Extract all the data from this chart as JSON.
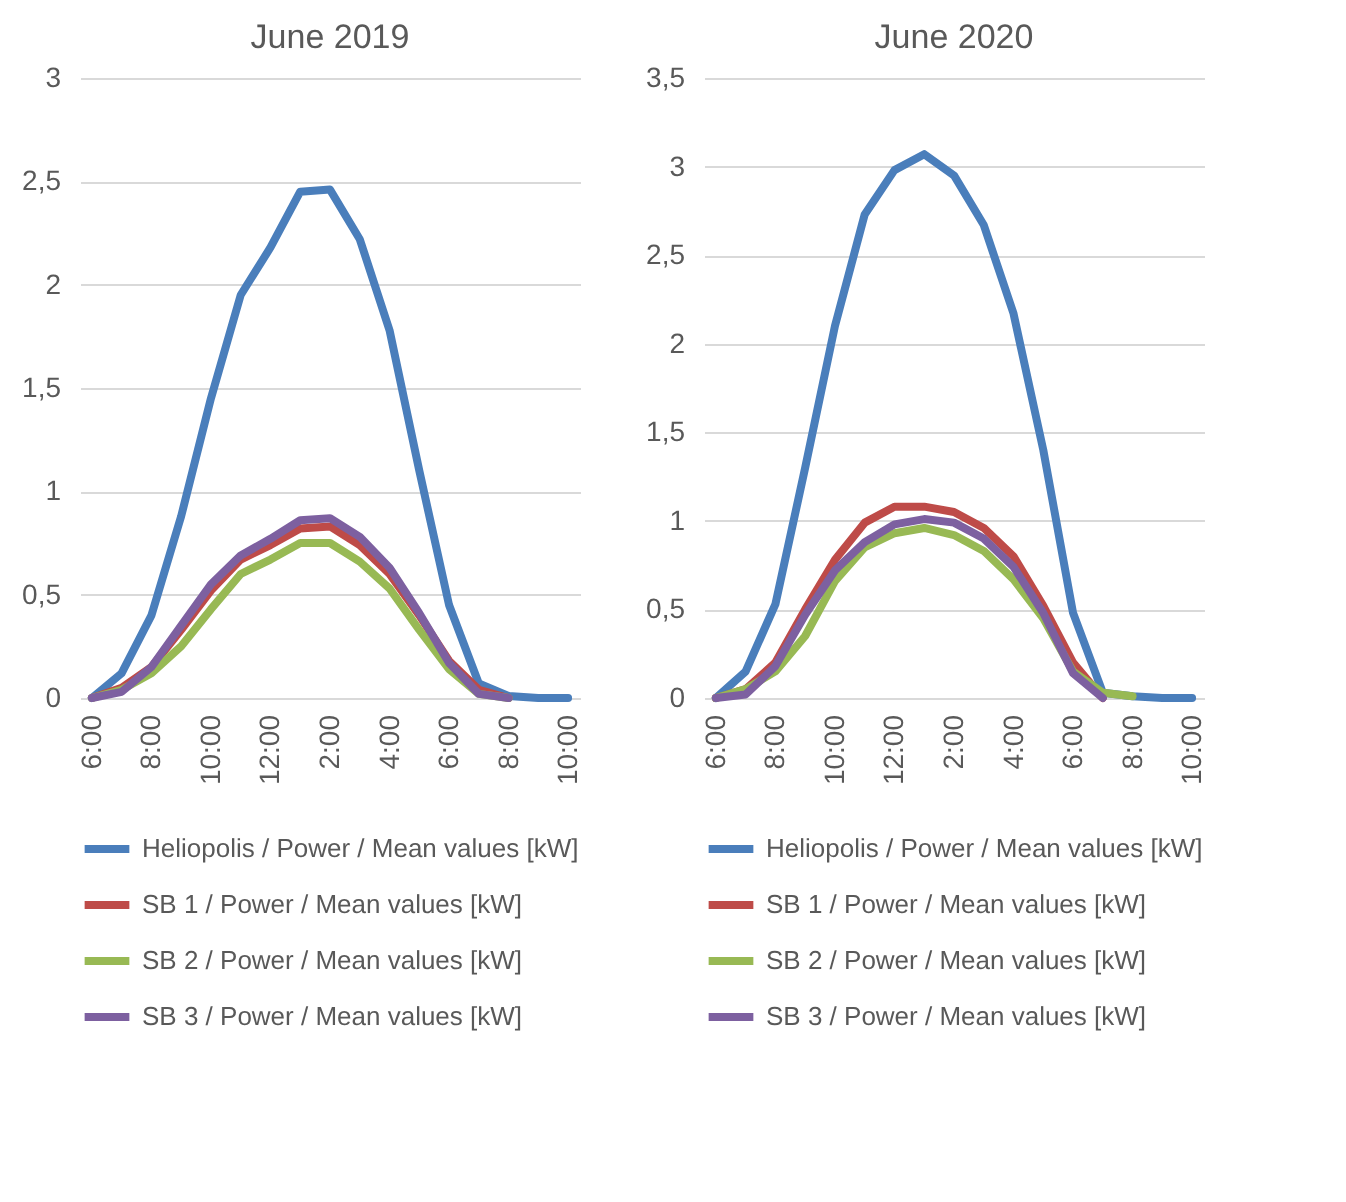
{
  "chart_data": [
    {
      "type": "line",
      "title": "June 2019",
      "categories": [
        "6:00",
        null,
        "8:00",
        null,
        "10:00",
        null,
        "12:00",
        null,
        "2:00",
        null,
        "4:00",
        null,
        "6:00",
        null,
        "8:00",
        null,
        "10:00"
      ],
      "series": [
        {
          "name": "Heliopolis / Power / Mean values [kW]",
          "color": "#4a7ebb",
          "values": [
            0,
            0.12,
            0.4,
            0.88,
            1.45,
            1.95,
            2.18,
            2.45,
            2.46,
            2.22,
            1.78,
            1.1,
            0.45,
            0.07,
            0.01,
            0,
            0
          ]
        },
        {
          "name": "SB 1 / Power / Mean values [kW]",
          "color": "#be4b48",
          "values": [
            0,
            0.05,
            0.15,
            0.33,
            0.52,
            0.67,
            0.74,
            0.82,
            0.83,
            0.74,
            0.6,
            0.4,
            0.18,
            0.04,
            0,
            null,
            null
          ]
        },
        {
          "name": "SB 2 / Power / Mean values [kW]",
          "color": "#98b954",
          "values": [
            0,
            0.04,
            0.12,
            0.25,
            0.43,
            0.6,
            0.67,
            0.75,
            0.75,
            0.66,
            0.53,
            0.33,
            0.14,
            0.02,
            0,
            null,
            null
          ]
        },
        {
          "name": "SB 3 / Power / Mean values [kW]",
          "color": "#7d60a0",
          "values": [
            0,
            0.03,
            0.15,
            0.35,
            0.55,
            0.69,
            0.77,
            0.86,
            0.87,
            0.78,
            0.63,
            0.41,
            0.17,
            0.02,
            0,
            null,
            null
          ]
        }
      ],
      "ylim": [
        0,
        3
      ],
      "yticks": [
        0,
        {
          "value": 0.5,
          "label": "0,5"
        },
        1,
        {
          "value": 1.5,
          "label": "1,5"
        },
        2,
        {
          "value": 2.5,
          "label": "2,5"
        },
        3
      ],
      "grid": "y",
      "legend": "bottom"
    },
    {
      "type": "line",
      "title": "June 2020",
      "categories": [
        "6:00",
        null,
        "8:00",
        null,
        "10:00",
        null,
        "12:00",
        null,
        "2:00",
        null,
        "4:00",
        null,
        "6:00",
        null,
        "8:00",
        null,
        "10:00"
      ],
      "series": [
        {
          "name": "Heliopolis / Power / Mean values [kW]",
          "color": "#4a7ebb",
          "values": [
            0,
            0.15,
            0.53,
            1.3,
            2.1,
            2.73,
            2.98,
            3.07,
            2.95,
            2.67,
            2.17,
            1.4,
            0.48,
            0.03,
            0.01,
            0,
            0
          ]
        },
        {
          "name": "SB 1 / Power / Mean values [kW]",
          "color": "#be4b48",
          "values": [
            0,
            0.05,
            0.2,
            0.5,
            0.78,
            0.99,
            1.08,
            1.08,
            1.05,
            0.96,
            0.8,
            0.52,
            0.2,
            0,
            null,
            null,
            null
          ]
        },
        {
          "name": "SB 2 / Power / Mean values [kW]",
          "color": "#98b954",
          "values": [
            0,
            0.05,
            0.15,
            0.35,
            0.66,
            0.85,
            0.93,
            0.96,
            0.92,
            0.83,
            0.67,
            0.45,
            0.15,
            0.03,
            0.01,
            null,
            null
          ]
        },
        {
          "name": "SB 3 / Power / Mean values [kW]",
          "color": "#7d60a0",
          "values": [
            0,
            0.02,
            0.18,
            0.47,
            0.72,
            0.88,
            0.98,
            1.01,
            0.99,
            0.9,
            0.74,
            0.48,
            0.14,
            0,
            null,
            null,
            null
          ]
        }
      ],
      "ylim": [
        0,
        3.5
      ],
      "yticks": [
        0,
        {
          "value": 0.5,
          "label": "0,5"
        },
        1,
        {
          "value": 1.5,
          "label": "1,5"
        },
        2,
        {
          "value": 2.5,
          "label": "2,5"
        },
        3,
        {
          "value": 3.5,
          "label": "3,5"
        }
      ],
      "grid": "y",
      "legend": "bottom"
    }
  ]
}
